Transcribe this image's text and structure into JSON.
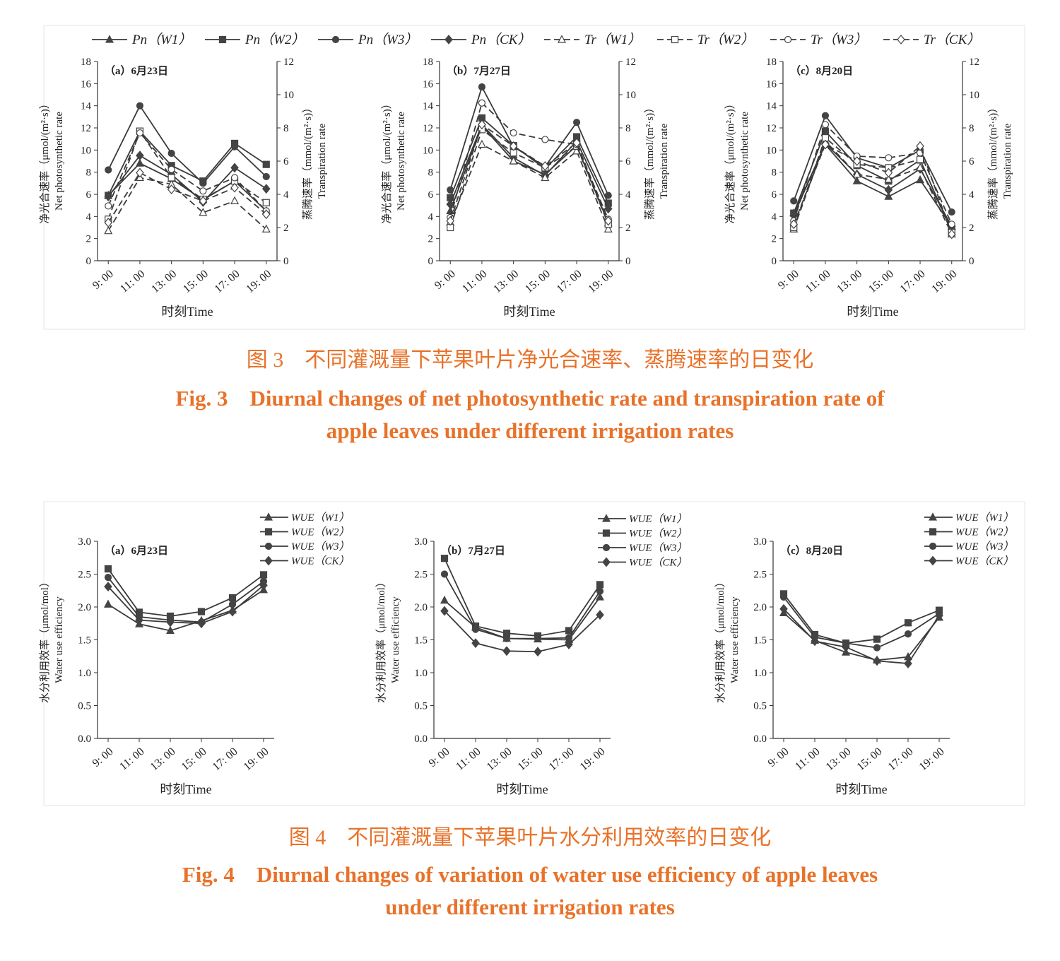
{
  "fig3": {
    "caption_cn": "图 3　不同灌溉量下苹果叶片净光合速率、蒸腾速率的日变化",
    "caption_en_1": "Fig. 3　Diurnal changes of net photosynthetic rate and transpiration rate of",
    "caption_en_2": "apple leaves under different irrigation rates"
  },
  "fig4": {
    "caption_cn": "图 4　不同灌溉量下苹果叶片水分利用效率的日变化",
    "caption_en_1": "Fig. 4　Diurnal changes of variation of water use efficiency of apple leaves",
    "caption_en_2": "under different irrigation rates"
  },
  "chart_data": [
    {
      "id": "fig3a",
      "type": "line",
      "title": "（a）6月23日",
      "categories": [
        "9: 00",
        "11: 00",
        "13: 00",
        "15: 00",
        "17: 00",
        "19: 00"
      ],
      "xlabel": "时刻Time",
      "ylabel_left": [
        "净光合速率（μmol/(m²·s)）",
        "Net photosynthetic rate"
      ],
      "ylabel_right": [
        "蒸腾速率（mmol/(m²·s)）",
        "Transpiration rate"
      ],
      "ylim_left": [
        0,
        18
      ],
      "yticks_left": [
        0,
        2,
        4,
        6,
        8,
        10,
        12,
        14,
        16,
        18
      ],
      "ylim_right": [
        0,
        12
      ],
      "yticks_right": [
        0,
        2,
        4,
        6,
        8,
        10,
        12
      ],
      "series": [
        {
          "name": "Pn（W1）",
          "axis": "left",
          "marker": "triangle-filled",
          "dash": false,
          "values": [
            5.9,
            8.8,
            7.4,
            5.5,
            7.2,
            4.5
          ]
        },
        {
          "name": "Pn（W2）",
          "axis": "left",
          "marker": "square-filled",
          "dash": false,
          "values": [
            5.9,
            11.7,
            8.6,
            7.2,
            10.6,
            8.7
          ]
        },
        {
          "name": "Pn（W3）",
          "axis": "left",
          "marker": "circle-filled",
          "dash": false,
          "values": [
            8.2,
            14.0,
            9.7,
            7.0,
            10.3,
            7.6
          ]
        },
        {
          "name": "Pn（CK）",
          "axis": "left",
          "marker": "diamond-filled",
          "dash": false,
          "values": [
            5.8,
            9.5,
            7.8,
            5.3,
            8.4,
            6.5
          ]
        },
        {
          "name": "Tr（W1）",
          "axis": "right",
          "marker": "triangle-open",
          "dash": true,
          "values": [
            1.8,
            5.0,
            4.6,
            2.9,
            3.6,
            1.9
          ]
        },
        {
          "name": "Tr（W2）",
          "axis": "right",
          "marker": "square-open",
          "dash": true,
          "values": [
            2.5,
            7.8,
            5.0,
            3.7,
            4.8,
            3.5
          ]
        },
        {
          "name": "Tr（W3）",
          "axis": "right",
          "marker": "circle-open",
          "dash": true,
          "values": [
            3.3,
            7.7,
            5.5,
            4.2,
            5.0,
            3.0
          ]
        },
        {
          "name": "Tr（CK）",
          "axis": "right",
          "marker": "diamond-open",
          "dash": true,
          "values": [
            2.3,
            5.3,
            4.3,
            3.6,
            4.4,
            2.8
          ]
        }
      ]
    },
    {
      "id": "fig3b",
      "type": "line",
      "title": "（b）7月27日",
      "categories": [
        "9: 00",
        "11: 00",
        "13: 00",
        "15: 00",
        "17: 00",
        "19: 00"
      ],
      "xlabel": "时刻Time",
      "ylabel_left": [
        "净光合速率（μmol/(m²·s)）",
        "Net photosynthetic rate"
      ],
      "ylabel_right": [
        "蒸腾速率（mmol/(m²·s)）",
        "Transpiration rate"
      ],
      "ylim_left": [
        0,
        18
      ],
      "yticks_left": [
        0,
        2,
        4,
        6,
        8,
        10,
        12,
        14,
        16,
        18
      ],
      "ylim_right": [
        0,
        12
      ],
      "yticks_right": [
        0,
        2,
        4,
        6,
        8,
        10,
        12
      ],
      "series": [
        {
          "name": "Pn（W1）",
          "axis": "left",
          "marker": "triangle-filled",
          "dash": false,
          "values": [
            4.5,
            12.2,
            9.0,
            7.8,
            10.4,
            3.4
          ]
        },
        {
          "name": "Pn（W2）",
          "axis": "left",
          "marker": "square-filled",
          "dash": false,
          "values": [
            5.7,
            12.9,
            10.4,
            8.3,
            11.2,
            5.2
          ]
        },
        {
          "name": "Pn（W3）",
          "axis": "left",
          "marker": "circle-filled",
          "dash": false,
          "values": [
            6.4,
            15.7,
            10.3,
            8.5,
            12.5,
            5.9
          ]
        },
        {
          "name": "Pn（CK）",
          "axis": "left",
          "marker": "diamond-filled",
          "dash": false,
          "values": [
            5.1,
            12.3,
            9.3,
            7.7,
            10.8,
            4.7
          ]
        },
        {
          "name": "Tr（W1）",
          "axis": "right",
          "marker": "triangle-open",
          "dash": true,
          "values": [
            2.3,
            7.0,
            6.0,
            5.0,
            6.6,
            1.9
          ]
        },
        {
          "name": "Tr（W2）",
          "axis": "right",
          "marker": "square-open",
          "dash": true,
          "values": [
            2.0,
            7.9,
            6.5,
            5.6,
            6.9,
            2.2
          ]
        },
        {
          "name": "Tr（W3）",
          "axis": "right",
          "marker": "circle-open",
          "dash": true,
          "values": [
            2.6,
            9.5,
            7.7,
            7.3,
            7.0,
            2.5
          ]
        },
        {
          "name": "Tr（CK）",
          "axis": "right",
          "marker": "diamond-open",
          "dash": true,
          "values": [
            2.4,
            8.2,
            6.9,
            5.7,
            7.1,
            2.4
          ]
        }
      ]
    },
    {
      "id": "fig3c",
      "type": "line",
      "title": "（c）8月20日",
      "categories": [
        "9: 00",
        "11: 00",
        "13: 00",
        "15: 00",
        "17: 00",
        "19: 00"
      ],
      "xlabel": "时刻Time",
      "ylabel_left": [
        "净光合速率（μmol/(m²·s)）",
        "Net photosynthetic rate"
      ],
      "ylabel_right": [
        "蒸腾速率（mmol/(m²·s)）",
        "Transpiration rate"
      ],
      "ylim_left": [
        0,
        18
      ],
      "yticks_left": [
        0,
        2,
        4,
        6,
        8,
        10,
        12,
        14,
        16,
        18
      ],
      "ylim_right": [
        0,
        12
      ],
      "yticks_right": [
        0,
        2,
        4,
        6,
        8,
        10,
        12
      ],
      "series": [
        {
          "name": "Pn（W1）",
          "axis": "left",
          "marker": "triangle-filled",
          "dash": false,
          "values": [
            4.3,
            10.5,
            7.2,
            5.8,
            7.3,
            3.1
          ]
        },
        {
          "name": "Pn（W2）",
          "axis": "left",
          "marker": "square-filled",
          "dash": false,
          "values": [
            4.3,
            11.7,
            8.6,
            7.2,
            9.1,
            2.7
          ]
        },
        {
          "name": "Pn（W3）",
          "axis": "left",
          "marker": "circle-filled",
          "dash": false,
          "values": [
            5.4,
            13.1,
            9.3,
            8.4,
            10.0,
            4.4
          ]
        },
        {
          "name": "Pn（CK）",
          "axis": "left",
          "marker": "diamond-filled",
          "dash": false,
          "values": [
            4.1,
            10.6,
            7.8,
            6.4,
            8.3,
            3.1
          ]
        },
        {
          "name": "Tr（W1）",
          "axis": "right",
          "marker": "triangle-open",
          "dash": true,
          "values": [
            1.9,
            7.2,
            5.2,
            4.9,
            5.6,
            1.6
          ]
        },
        {
          "name": "Tr（W2）",
          "axis": "right",
          "marker": "square-open",
          "dash": true,
          "values": [
            2.0,
            7.4,
            5.8,
            5.6,
            6.1,
            1.7
          ]
        },
        {
          "name": "Tr（W3）",
          "axis": "right",
          "marker": "circle-open",
          "dash": true,
          "values": [
            2.4,
            8.2,
            6.3,
            6.2,
            6.5,
            2.2
          ]
        },
        {
          "name": "Tr（CK）",
          "axis": "right",
          "marker": "diamond-open",
          "dash": true,
          "values": [
            2.2,
            7.0,
            6.0,
            5.3,
            6.9,
            1.6
          ]
        }
      ]
    },
    {
      "id": "fig4a",
      "type": "line",
      "title": "（a）6月23日",
      "categories": [
        "9: 00",
        "11: 00",
        "13: 00",
        "15: 00",
        "17: 00",
        "19: 00"
      ],
      "xlabel": "时刻Time",
      "ylabel_left": [
        "水分利用效率（μmol/mol）",
        "Water use efficiency"
      ],
      "ylim_left": [
        0,
        3
      ],
      "yticks_left": [
        "0.0",
        "0.5",
        "1.0",
        "1.5",
        "2.0",
        "2.5",
        "3.0"
      ],
      "series": [
        {
          "name": "WUE（W1）",
          "axis": "left",
          "marker": "triangle-filled",
          "dash": false,
          "values": [
            2.04,
            1.74,
            1.64,
            1.79,
            1.95,
            2.26
          ]
        },
        {
          "name": "WUE（W2）",
          "axis": "left",
          "marker": "square-filled",
          "dash": false,
          "values": [
            2.58,
            1.92,
            1.86,
            1.93,
            2.14,
            2.49
          ]
        },
        {
          "name": "WUE（W3）",
          "axis": "left",
          "marker": "circle-filled",
          "dash": false,
          "values": [
            2.45,
            1.85,
            1.8,
            1.77,
            2.04,
            2.39
          ]
        },
        {
          "name": "WUE（CK）",
          "axis": "left",
          "marker": "diamond-filled",
          "dash": false,
          "values": [
            2.31,
            1.8,
            1.77,
            1.75,
            1.93,
            2.33
          ]
        }
      ]
    },
    {
      "id": "fig4b",
      "type": "line",
      "title": "（b）7月27日",
      "categories": [
        "9: 00",
        "11: 00",
        "13: 00",
        "15: 00",
        "17: 00",
        "19: 00"
      ],
      "xlabel": "时刻Time",
      "ylabel_left": [
        "水分利用效率（μmol/mol）",
        "Water use efficiency"
      ],
      "ylim_left": [
        0,
        3
      ],
      "yticks_left": [
        "0.0",
        "0.5",
        "1.0",
        "1.5",
        "2.0",
        "2.5",
        "3.0"
      ],
      "series": [
        {
          "name": "WUE（W1）",
          "axis": "left",
          "marker": "triangle-filled",
          "dash": false,
          "values": [
            2.1,
            1.69,
            1.52,
            1.51,
            1.5,
            2.15
          ]
        },
        {
          "name": "WUE（W2）",
          "axis": "left",
          "marker": "square-filled",
          "dash": false,
          "values": [
            2.74,
            1.71,
            1.6,
            1.56,
            1.64,
            2.34
          ]
        },
        {
          "name": "WUE（W3）",
          "axis": "left",
          "marker": "circle-filled",
          "dash": false,
          "values": [
            2.5,
            1.66,
            1.52,
            1.52,
            1.53,
            2.24
          ]
        },
        {
          "name": "WUE（CK）",
          "axis": "left",
          "marker": "diamond-filled",
          "dash": false,
          "values": [
            1.94,
            1.45,
            1.33,
            1.32,
            1.43,
            1.88
          ]
        }
      ]
    },
    {
      "id": "fig4c",
      "type": "line",
      "title": "（c）8月20日",
      "categories": [
        "9: 00",
        "11: 00",
        "13: 00",
        "15: 00",
        "17: 00",
        "19: 00"
      ],
      "xlabel": "时刻Time",
      "ylabel_left": [
        "水分利用效率（μmol/mol）",
        "Water use efficiency"
      ],
      "ylim_left": [
        0,
        3
      ],
      "yticks_left": [
        "0.0",
        "0.5",
        "1.0",
        "1.5",
        "2.0",
        "2.5",
        "3.0"
      ],
      "series": [
        {
          "name": "WUE（W1）",
          "axis": "left",
          "marker": "triangle-filled",
          "dash": false,
          "values": [
            1.91,
            1.49,
            1.31,
            1.19,
            1.24,
            1.84
          ]
        },
        {
          "name": "WUE（W2）",
          "axis": "left",
          "marker": "square-filled",
          "dash": false,
          "values": [
            2.2,
            1.58,
            1.45,
            1.51,
            1.76,
            1.95
          ]
        },
        {
          "name": "WUE（W3）",
          "axis": "left",
          "marker": "circle-filled",
          "dash": false,
          "values": [
            2.15,
            1.54,
            1.45,
            1.38,
            1.59,
            1.9
          ]
        },
        {
          "name": "WUE（CK）",
          "axis": "left",
          "marker": "diamond-filled",
          "dash": false,
          "values": [
            1.97,
            1.48,
            1.39,
            1.18,
            1.14,
            1.87
          ]
        }
      ]
    }
  ]
}
